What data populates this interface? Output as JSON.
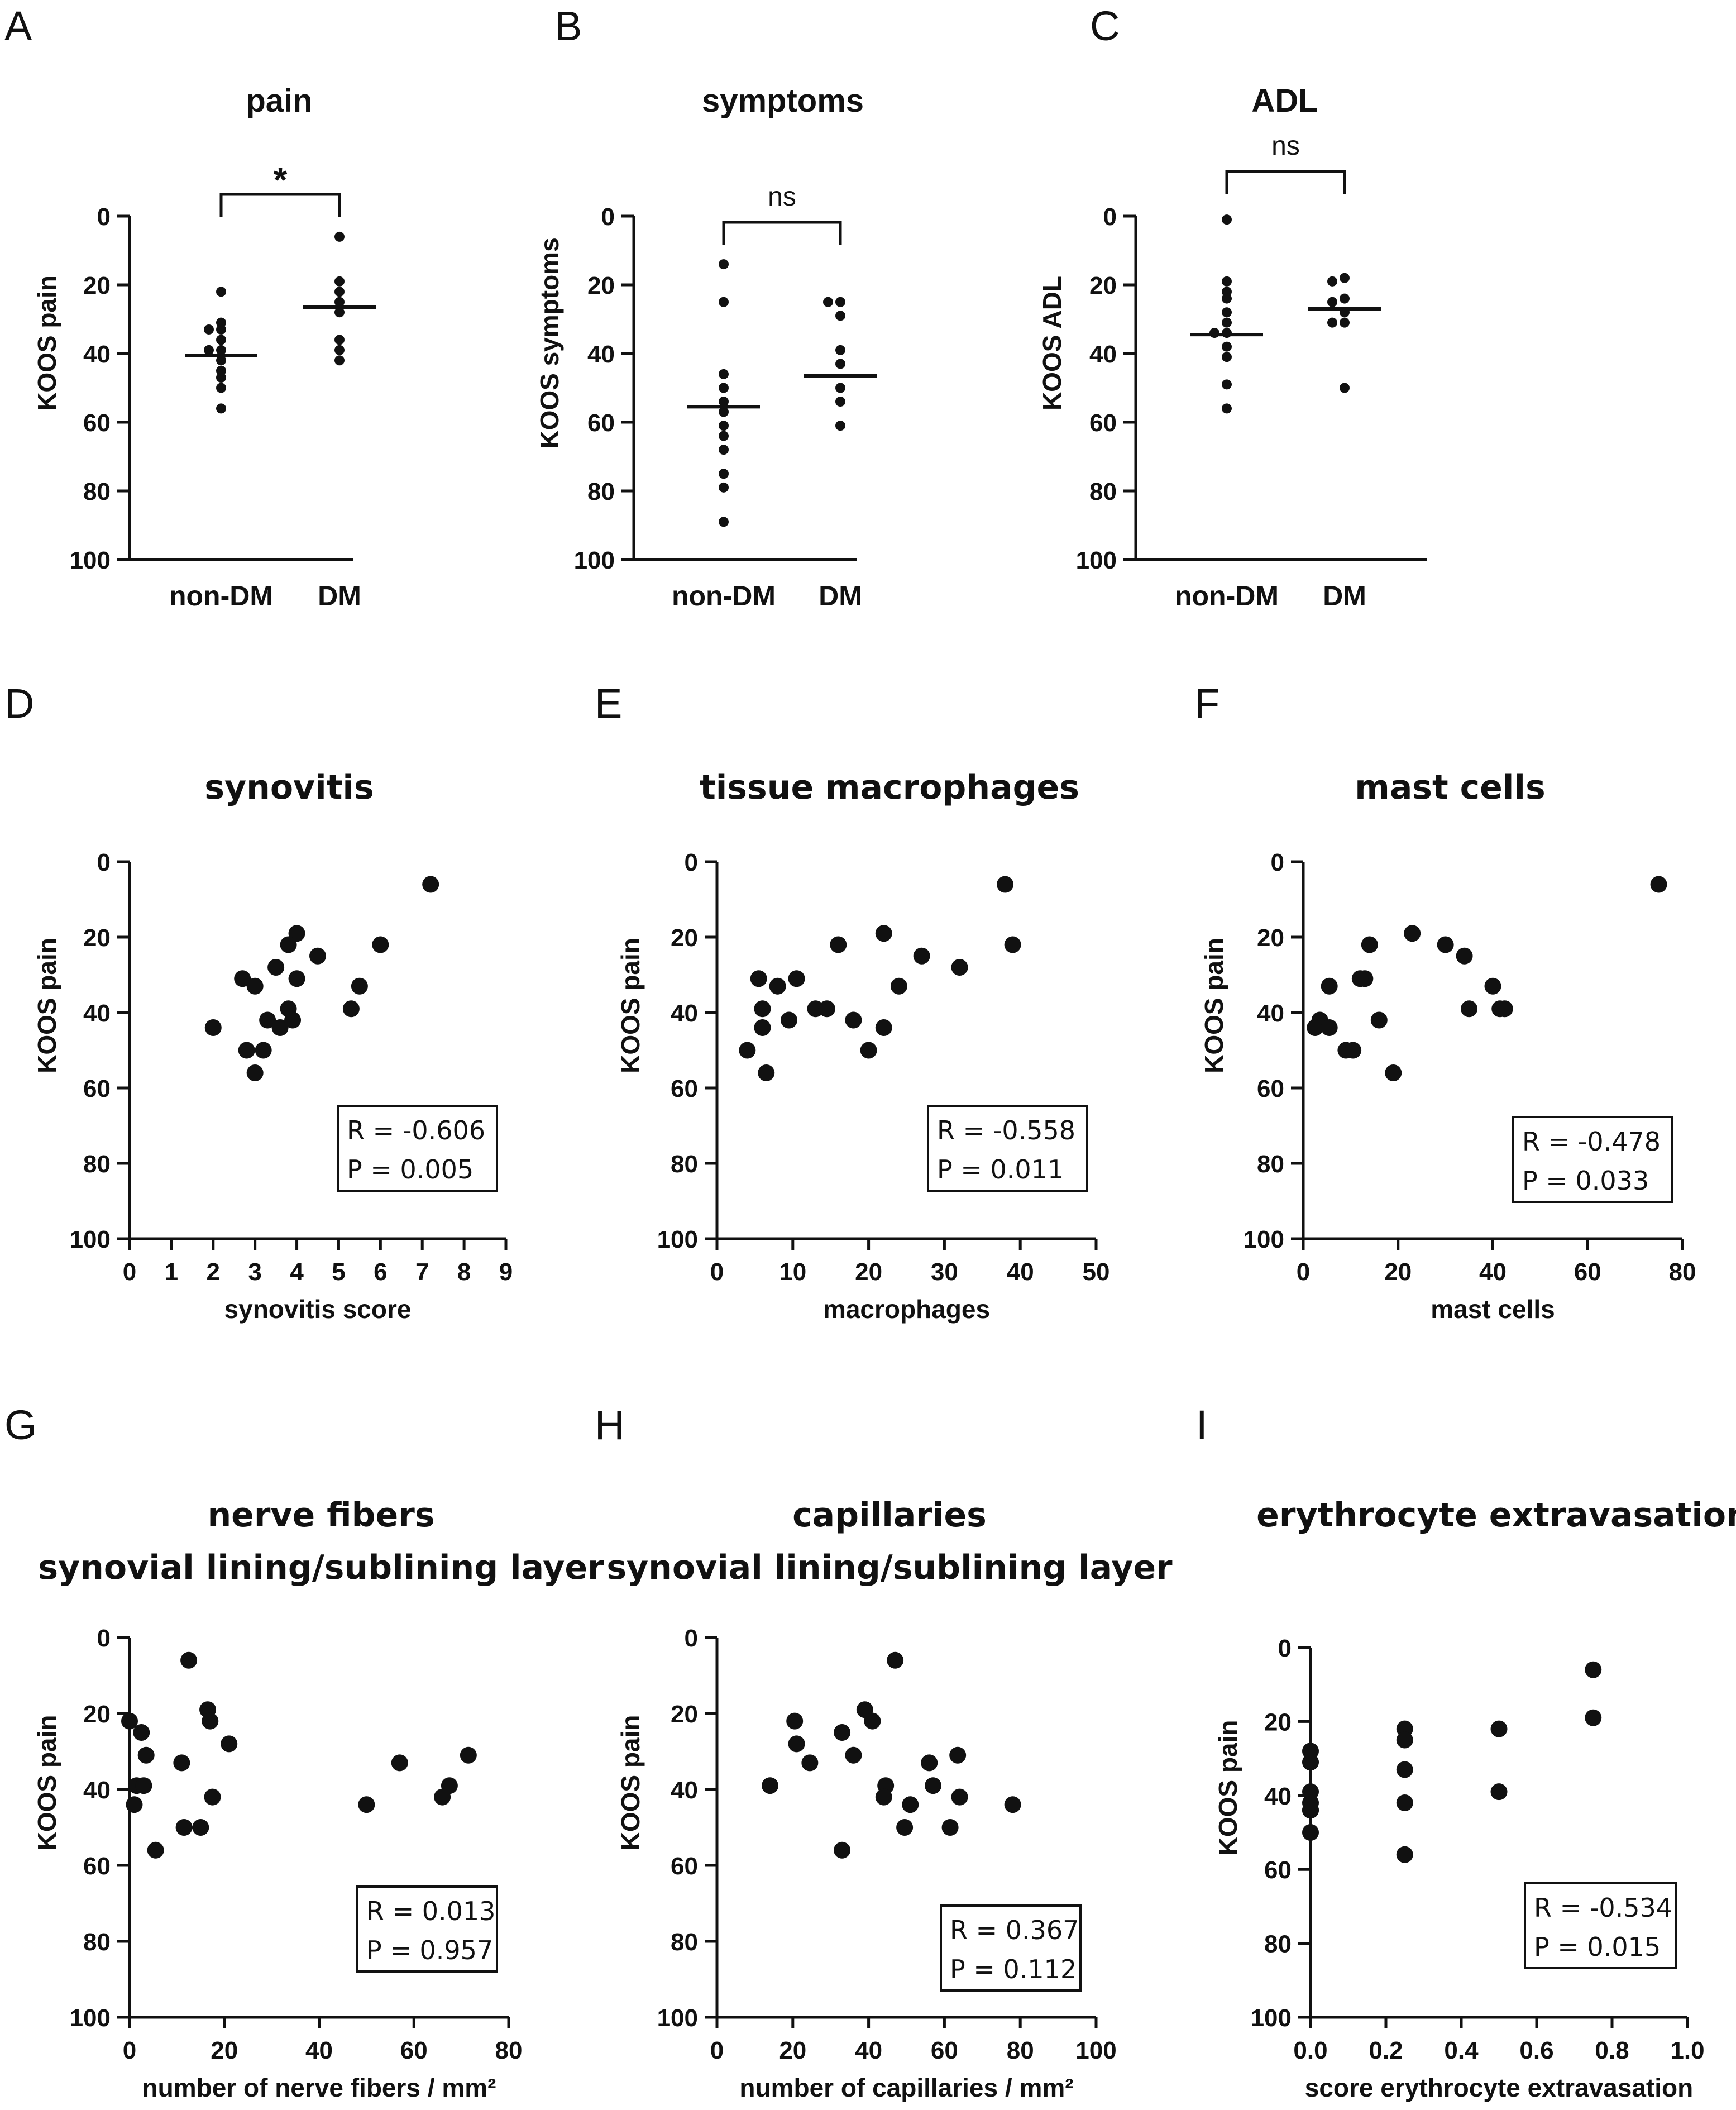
{
  "figure": {
    "background": "#ffffff",
    "ink": "#111111"
  },
  "chart_data": [
    {
      "panel": "A",
      "type": "scatter",
      "title": "pain",
      "ylabel": "KOOS pain",
      "xlabel": "",
      "categories": [
        "non-DM",
        "DM"
      ],
      "ylim": [
        0,
        100
      ],
      "y_inverted": true,
      "yticks": [
        0,
        20,
        40,
        60,
        80,
        100
      ],
      "series": [
        {
          "name": "non-DM",
          "values": [
            22,
            31,
            33,
            33,
            36,
            39,
            39,
            42,
            45,
            47,
            50,
            56
          ],
          "mean": 40.5
        },
        {
          "name": "DM",
          "values": [
            6,
            19,
            22,
            25,
            28,
            36,
            39,
            42
          ],
          "mean": 26.5
        }
      ],
      "significance": "*"
    },
    {
      "panel": "B",
      "type": "scatter",
      "title": "symptoms",
      "ylabel": "KOOS symptoms",
      "xlabel": "",
      "categories": [
        "non-DM",
        "DM"
      ],
      "ylim": [
        0,
        100
      ],
      "y_inverted": true,
      "yticks": [
        0,
        20,
        40,
        60,
        80,
        100
      ],
      "series": [
        {
          "name": "non-DM",
          "values": [
            14,
            25,
            46,
            50,
            54,
            57,
            61,
            64,
            68,
            75,
            79,
            89
          ],
          "mean": 55.5
        },
        {
          "name": "DM",
          "values": [
            25,
            25,
            29,
            39,
            43,
            50,
            54,
            61
          ],
          "mean": 46.5
        }
      ],
      "significance": "ns"
    },
    {
      "panel": "C",
      "type": "scatter",
      "title": "ADL",
      "ylabel": "KOOS ADL",
      "xlabel": "",
      "categories": [
        "non-DM",
        "DM"
      ],
      "ylim": [
        0,
        100
      ],
      "y_inverted": true,
      "yticks": [
        0,
        20,
        40,
        60,
        80,
        100
      ],
      "series": [
        {
          "name": "non-DM",
          "values": [
            1,
            19,
            22,
            24,
            28,
            31,
            34,
            34,
            38,
            41,
            49,
            56
          ],
          "mean": 34.5
        },
        {
          "name": "DM",
          "values": [
            18,
            19,
            24,
            25,
            28,
            31,
            31,
            50
          ],
          "mean": 27
        }
      ],
      "significance": "ns"
    },
    {
      "panel": "D",
      "type": "scatter",
      "title": "synovitis",
      "xlabel": "synovitis score",
      "ylabel": "KOOS pain",
      "xlim": [
        0,
        9
      ],
      "xticks": [
        0,
        1,
        2,
        3,
        4,
        5,
        6,
        7,
        8,
        9
      ],
      "ylim": [
        0,
        100
      ],
      "y_inverted": true,
      "yticks": [
        0,
        20,
        40,
        60,
        80,
        100
      ],
      "x": [
        7.2,
        4.0,
        3.8,
        6.0,
        4.5,
        2.7,
        3.0,
        3.5,
        5.5,
        4.0,
        3.3,
        3.6,
        5.3,
        3.8,
        3.9,
        2.0,
        2.8,
        3.2,
        3.0
      ],
      "y": [
        6,
        19,
        22,
        22,
        25,
        31,
        33,
        28,
        33,
        31,
        42,
        44,
        39,
        39,
        42,
        44,
        50,
        50,
        56
      ],
      "stats": {
        "R": "R = -0.606",
        "P": "P = 0.005"
      }
    },
    {
      "panel": "E",
      "type": "scatter",
      "title": "tissue macrophages",
      "xlabel": "macrophages",
      "ylabel": "KOOS pain",
      "xlim": [
        0,
        50
      ],
      "xticks": [
        0,
        10,
        20,
        30,
        40,
        50
      ],
      "ylim": [
        0,
        100
      ],
      "y_inverted": true,
      "yticks": [
        0,
        20,
        40,
        60,
        80,
        100
      ],
      "x": [
        38,
        39,
        22,
        16,
        27,
        32,
        24,
        5.5,
        10.5,
        8,
        13,
        14.5,
        6,
        9.5,
        18,
        22,
        6,
        4,
        20,
        6.5
      ],
      "y": [
        6,
        22,
        19,
        22,
        25,
        28,
        33,
        31,
        31,
        33,
        39,
        39,
        39,
        42,
        42,
        44,
        44,
        50,
        50,
        56
      ],
      "stats": {
        "R": "R = -0.558",
        "P": "P = 0.011"
      }
    },
    {
      "panel": "F",
      "type": "scatter",
      "title": "mast cells",
      "xlabel": "mast cells",
      "ylabel": "KOOS pain",
      "xlim": [
        0,
        80
      ],
      "xticks": [
        0,
        20,
        40,
        60,
        80
      ],
      "ylim": [
        0,
        100
      ],
      "y_inverted": true,
      "yticks": [
        0,
        20,
        40,
        60,
        80,
        100
      ],
      "x": [
        75,
        23,
        14,
        30,
        34,
        40,
        13,
        12,
        5.5,
        35,
        41.5,
        42.5,
        3.5,
        2.5,
        5.5,
        16,
        9,
        10.5,
        19
      ],
      "y": [
        6,
        19,
        22,
        22,
        25,
        33,
        31,
        31,
        33,
        39,
        39,
        39,
        42,
        44,
        44,
        42,
        50,
        50,
        56
      ],
      "stats": {
        "R": "R = -0.478",
        "P": "P = 0.033"
      }
    },
    {
      "panel": "G",
      "type": "scatter",
      "title": [
        "nerve fibers",
        "synovial lining/sublining layer"
      ],
      "xlabel": "number of nerve fibers / mm²",
      "ylabel": "KOOS pain",
      "xlim": [
        0,
        80
      ],
      "xticks": [
        0,
        20,
        40,
        60,
        80
      ],
      "ylim": [
        0,
        100
      ],
      "y_inverted": true,
      "yticks": [
        0,
        20,
        40,
        60,
        80,
        100
      ],
      "x": [
        12.5,
        16.5,
        0,
        17,
        2.5,
        21,
        3.5,
        11,
        57,
        71.5,
        1.5,
        3,
        17.5,
        67.5,
        66,
        1,
        50,
        11.5,
        15,
        5.5
      ],
      "y": [
        6,
        19,
        22,
        22,
        25,
        28,
        31,
        33,
        33,
        31,
        39,
        39,
        42,
        39,
        42,
        44,
        44,
        50,
        50,
        56
      ],
      "stats": {
        "R": "R = 0.013",
        "P": "P = 0.957"
      }
    },
    {
      "panel": "H",
      "type": "scatter",
      "title": [
        "capillaries",
        "synovial lining/sublining layer"
      ],
      "xlabel": "number of capillaries / mm²",
      "ylabel": "KOOS pain",
      "xlim": [
        0,
        100
      ],
      "xticks": [
        0,
        20,
        40,
        60,
        80,
        100
      ],
      "ylim": [
        0,
        100
      ],
      "y_inverted": true,
      "yticks": [
        0,
        20,
        40,
        60,
        80,
        100
      ],
      "x": [
        47,
        39,
        20.5,
        41,
        33,
        21,
        24.5,
        36,
        63.5,
        56,
        14,
        44.5,
        57,
        44,
        51,
        64,
        78,
        49.5,
        61.5,
        33
      ],
      "y": [
        6,
        19,
        22,
        22,
        25,
        28,
        33,
        31,
        31,
        33,
        39,
        39,
        39,
        42,
        44,
        42,
        44,
        50,
        50,
        56
      ],
      "stats": {
        "R": "R = 0.367",
        "P": "P = 0.112"
      }
    },
    {
      "panel": "I",
      "type": "scatter",
      "title": "erythrocyte extravasation",
      "xlabel": "score erythrocyte extravasation",
      "ylabel": "KOOS pain",
      "xlim": [
        0,
        1
      ],
      "xticks": [
        "0.0",
        "0.2",
        "0.4",
        "0.6",
        "0.8",
        "1.0"
      ],
      "ylim": [
        0,
        100
      ],
      "y_inverted": true,
      "yticks": [
        0,
        20,
        40,
        60,
        80,
        100
      ],
      "x": [
        0.75,
        0.75,
        0.25,
        0.5,
        0.25,
        0.25,
        0.5,
        0.25,
        0.25,
        0,
        0,
        0,
        0,
        0,
        0,
        0
      ],
      "y": [
        6,
        19,
        22,
        22,
        25,
        33,
        39,
        42,
        56,
        28,
        31,
        39,
        42,
        44,
        44,
        50
      ],
      "stats": {
        "R": "R = -0.534",
        "P": "P = 0.015"
      }
    }
  ]
}
